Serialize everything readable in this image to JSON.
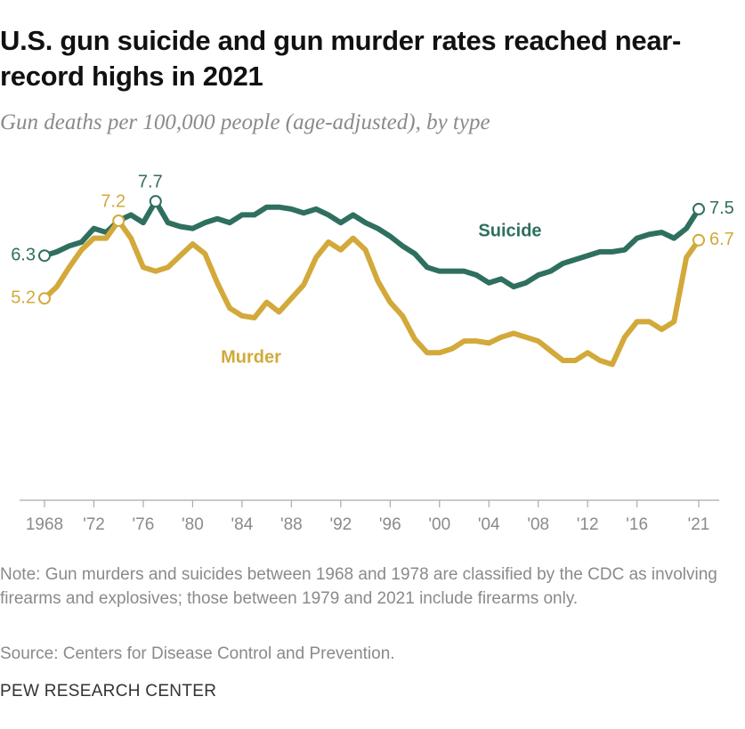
{
  "chart_data": {
    "type": "line",
    "title": "U.S. gun suicide and gun murder rates reached near-record highs in 2021",
    "subtitle": "Gun deaths per 100,000 people (age-adjusted), by type",
    "x": [
      1968,
      1969,
      1970,
      1971,
      1972,
      1973,
      1974,
      1975,
      1976,
      1977,
      1978,
      1979,
      1980,
      1981,
      1982,
      1983,
      1984,
      1985,
      1986,
      1987,
      1988,
      1989,
      1990,
      1991,
      1992,
      1993,
      1994,
      1995,
      1996,
      1997,
      1998,
      1999,
      2000,
      2001,
      2002,
      2003,
      2004,
      2005,
      2006,
      2007,
      2008,
      2009,
      2010,
      2011,
      2012,
      2013,
      2014,
      2015,
      2016,
      2017,
      2018,
      2019,
      2020,
      2021
    ],
    "xlim": [
      1968,
      2021
    ],
    "xticks": [
      1968,
      {
        "value": 1972,
        "label": "'72"
      },
      {
        "value": 1976,
        "label": "'76"
      },
      {
        "value": 1980,
        "label": "'80"
      },
      {
        "value": 1984,
        "label": "'84"
      },
      {
        "value": 1988,
        "label": "'88"
      },
      {
        "value": 1992,
        "label": "'92"
      },
      {
        "value": 1996,
        "label": "'96"
      },
      {
        "value": 2000,
        "label": "'00"
      },
      {
        "value": 2004,
        "label": "'04"
      },
      {
        "value": 2008,
        "label": "'08"
      },
      {
        "value": 2012,
        "label": "'12"
      },
      {
        "value": 2016,
        "label": "'16"
      },
      {
        "value": 2021,
        "label": "'21"
      }
    ],
    "ylim": [
      0,
      8.3
    ],
    "series": [
      {
        "name": "Suicide",
        "color": "#2f6f60",
        "labeled": [
          0,
          9,
          53
        ],
        "values": [
          6.3,
          6.4,
          6.55,
          6.65,
          7.0,
          6.9,
          7.2,
          7.35,
          7.15,
          7.7,
          7.15,
          7.05,
          7.0,
          7.15,
          7.25,
          7.15,
          7.35,
          7.35,
          7.55,
          7.55,
          7.5,
          7.4,
          7.5,
          7.35,
          7.15,
          7.35,
          7.15,
          7.0,
          6.8,
          6.55,
          6.35,
          6.0,
          5.9,
          5.9,
          5.9,
          5.8,
          5.6,
          5.7,
          5.5,
          5.6,
          5.8,
          5.9,
          6.1,
          6.2,
          6.3,
          6.4,
          6.4,
          6.45,
          6.75,
          6.85,
          6.9,
          6.75,
          7.0,
          7.5
        ]
      },
      {
        "name": "Murder",
        "color": "#d2a93a",
        "labeled": [
          0,
          6,
          53
        ],
        "values": [
          5.2,
          5.5,
          6.0,
          6.45,
          6.75,
          6.75,
          7.2,
          6.75,
          6.0,
          5.9,
          6.0,
          6.3,
          6.6,
          6.35,
          5.6,
          4.95,
          4.75,
          4.7,
          5.1,
          4.85,
          5.2,
          5.55,
          6.25,
          6.65,
          6.45,
          6.75,
          6.45,
          5.65,
          5.1,
          4.75,
          4.15,
          3.8,
          3.8,
          3.9,
          4.1,
          4.1,
          4.05,
          4.2,
          4.3,
          4.2,
          4.1,
          3.85,
          3.6,
          3.6,
          3.8,
          3.6,
          3.5,
          4.2,
          4.6,
          4.6,
          4.4,
          4.6,
          6.25,
          6.7
        ]
      }
    ],
    "note": "Note: Gun murders and suicides between 1968 and 1978 are classified by the CDC as involving firearms and explosives; those between 1979 and 2021 include firearms only.",
    "source": "Source: Centers for Disease Control and Prevention.",
    "footer": "PEW RESEARCH CENTER"
  }
}
